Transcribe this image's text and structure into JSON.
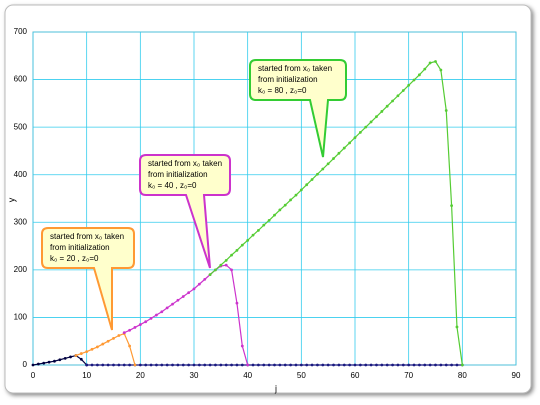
{
  "chart_data": {
    "type": "line",
    "xlabel": "j",
    "ylabel": "y",
    "xlim": [
      0,
      90
    ],
    "xticks": [
      0,
      10,
      20,
      30,
      40,
      50,
      60,
      70,
      80,
      90
    ],
    "ylim": [
      0,
      700
    ],
    "yticks": [
      0,
      100,
      200,
      300,
      400,
      500,
      600,
      700
    ],
    "grid": true,
    "series": [
      {
        "color": "#000040",
        "x": [
          0,
          1,
          2,
          3,
          4,
          5,
          6,
          7,
          8,
          9,
          10
        ],
        "values": [
          0,
          2,
          4,
          6,
          8,
          11,
          14,
          17,
          20,
          12,
          0
        ]
      },
      {
        "color": "#1a1a80",
        "x": [
          10,
          11,
          12,
          13,
          14,
          15,
          16,
          17,
          18,
          19,
          20,
          21,
          22,
          23,
          24,
          25,
          26,
          27,
          28,
          29,
          30,
          31,
          32,
          33,
          34,
          35,
          36,
          37,
          38,
          39,
          40,
          41,
          42,
          43,
          44,
          45,
          46,
          47,
          48,
          49,
          50,
          51,
          52,
          53,
          54,
          55,
          56,
          57,
          58,
          59,
          60,
          61,
          62,
          63,
          64,
          65,
          66,
          67,
          68,
          69,
          70,
          71,
          72,
          73,
          74,
          75,
          76,
          77,
          78,
          79,
          80
        ],
        "values": [
          0,
          0,
          0,
          0,
          0,
          0,
          0,
          0,
          0,
          0,
          0,
          0,
          0,
          0,
          0,
          0,
          0,
          0,
          0,
          0,
          0,
          0,
          0,
          0,
          0,
          0,
          0,
          0,
          0,
          0,
          0,
          0,
          0,
          0,
          0,
          0,
          0,
          0,
          0,
          0,
          0,
          0,
          0,
          0,
          0,
          0,
          0,
          0,
          0,
          0,
          0,
          0,
          0,
          0,
          0,
          0,
          0,
          0,
          0,
          0,
          0,
          0,
          0,
          0,
          0,
          0,
          0,
          0,
          0,
          0,
          0
        ]
      },
      {
        "color": "#ff9933",
        "x": [
          8,
          9,
          10,
          11,
          12,
          13,
          14,
          15,
          16,
          17,
          18,
          19
        ],
        "values": [
          20,
          24,
          28,
          33,
          38,
          44,
          50,
          56,
          62,
          66,
          40,
          0
        ]
      },
      {
        "color": "#cc33cc",
        "x": [
          17,
          18,
          19,
          20,
          21,
          22,
          23,
          24,
          25,
          26,
          27,
          28,
          29,
          30,
          31,
          32,
          33,
          34,
          35,
          36,
          37,
          38,
          39,
          40
        ],
        "values": [
          68,
          73,
          79,
          85,
          91,
          98,
          105,
          112,
          120,
          128,
          136,
          144,
          152,
          160,
          170,
          180,
          190,
          200,
          208,
          210,
          200,
          130,
          40,
          0
        ]
      },
      {
        "color": "#55cc33",
        "x": [
          33,
          34,
          35,
          36,
          37,
          38,
          39,
          40,
          41,
          42,
          43,
          44,
          45,
          46,
          47,
          48,
          49,
          50,
          51,
          52,
          53,
          54,
          55,
          56,
          57,
          58,
          59,
          60,
          61,
          62,
          63,
          64,
          65,
          66,
          67,
          68,
          69,
          70,
          71,
          72,
          73,
          74,
          75,
          76,
          77,
          78,
          79,
          80
        ],
        "values": [
          190,
          200,
          210,
          220,
          231,
          241,
          252,
          262,
          273,
          283,
          294,
          304,
          315,
          326,
          336,
          347,
          357,
          368,
          379,
          390,
          401,
          412,
          423,
          434,
          445,
          456,
          467,
          478,
          489,
          500,
          511,
          522,
          533,
          544,
          555,
          566,
          577,
          588,
          599,
          610,
          622,
          635,
          638,
          620,
          535,
          335,
          80,
          0
        ]
      }
    ],
    "annotations": [
      {
        "color": "#ff9933",
        "lines": [
          "started from x₀ taken",
          "from initialization",
          "k₀ = 20 , z₀=0"
        ]
      },
      {
        "color": "#cc33cc",
        "lines": [
          "started from x₀ taken",
          "from initialization",
          "k₀ = 40 , z₀=0"
        ]
      },
      {
        "color": "#33cc33",
        "lines": [
          "started from x₀ taken",
          "from initialization",
          "k₀ = 80 , z₀=0"
        ]
      }
    ]
  }
}
